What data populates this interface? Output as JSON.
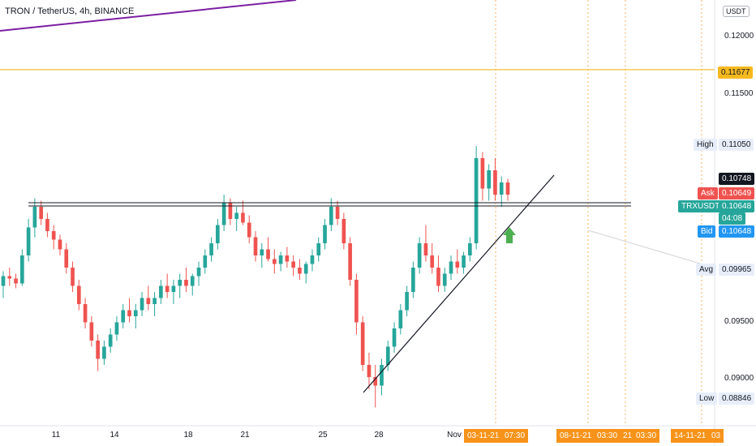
{
  "header": {
    "symbol_title": "TRON / TetherUS, 4h, BINANCE"
  },
  "price_axis": {
    "currency_label": "USDT",
    "ticks": [
      "0.12000",
      "0.11500",
      "0.11050",
      "0.09500",
      "0.09000"
    ]
  },
  "markers": {
    "resistance_value": "0.11677",
    "high_label": "High",
    "high_value": "0.11050",
    "last_value": "0.10748",
    "ask_label": "Ask",
    "ask_value": "0.10649",
    "symbol_label": "TRXUSDT",
    "symbol_value": "0.10648",
    "countdown": "04:08",
    "bid_label": "Bid",
    "bid_value": "0.10648",
    "avg_label": "Avg",
    "avg_value": "0.09965",
    "low_label": "Low",
    "low_value": "0.08846"
  },
  "time_axis": {
    "ticks": [
      "11",
      "14",
      "18",
      "21",
      "25",
      "28",
      "Nov"
    ],
    "highlighted": [
      "03-11-21",
      "07:30",
      "08-11-21",
      "03:30",
      "21",
      "03:30",
      "14-11-21",
      "03"
    ]
  },
  "colors": {
    "up": "#26a69a",
    "down": "#ef5350",
    "resistance_line": "#f5b920",
    "purple_line": "#7b1fa2",
    "date_pill": "#f7931a",
    "arrow": "#4caf50"
  },
  "chart_data": {
    "type": "candlestick",
    "symbol": "TRXUSDT",
    "interval": "4h",
    "ylim": [
      0.0875,
      0.1225
    ],
    "series": [
      {
        "values": [
          [
            0.099,
            0.1002,
            0.098,
            0.0998
          ],
          [
            0.0998,
            0.1005,
            0.099,
            0.0996
          ],
          [
            0.0996,
            0.1,
            0.0988,
            0.0992
          ],
          [
            0.0992,
            0.102,
            0.099,
            0.1015
          ],
          [
            0.1015,
            0.1045,
            0.101,
            0.1038
          ],
          [
            0.1038,
            0.1062,
            0.103,
            0.1055
          ],
          [
            0.1055,
            0.106,
            0.104,
            0.1045
          ],
          [
            0.1045,
            0.105,
            0.103,
            0.1035
          ],
          [
            0.1035,
            0.104,
            0.102,
            0.1028
          ],
          [
            0.1028,
            0.1032,
            0.1015,
            0.102
          ],
          [
            0.102,
            0.1025,
            0.1,
            0.1005
          ],
          [
            0.1005,
            0.101,
            0.0985,
            0.099
          ],
          [
            0.099,
            0.0995,
            0.097,
            0.0975
          ],
          [
            0.0975,
            0.098,
            0.0955,
            0.096
          ],
          [
            0.096,
            0.0965,
            0.094,
            0.0945
          ],
          [
            0.0945,
            0.095,
            0.092,
            0.093
          ],
          [
            0.093,
            0.0945,
            0.0925,
            0.094
          ],
          [
            0.094,
            0.0955,
            0.0935,
            0.095
          ],
          [
            0.095,
            0.0965,
            0.0945,
            0.096
          ],
          [
            0.096,
            0.0975,
            0.0955,
            0.097
          ],
          [
            0.097,
            0.098,
            0.096,
            0.0965
          ],
          [
            0.0965,
            0.0975,
            0.0955,
            0.097
          ],
          [
            0.097,
            0.0985,
            0.0965,
            0.098
          ],
          [
            0.098,
            0.099,
            0.097,
            0.0975
          ],
          [
            0.0975,
            0.0985,
            0.0965,
            0.098
          ],
          [
            0.098,
            0.0995,
            0.0975,
            0.099
          ],
          [
            0.099,
            0.1,
            0.098,
            0.0985
          ],
          [
            0.0985,
            0.0995,
            0.0975,
            0.099
          ],
          [
            0.099,
            0.1,
            0.098,
            0.0995
          ],
          [
            0.0995,
            0.1005,
            0.0985,
            0.099
          ],
          [
            0.099,
            0.1,
            0.0982,
            0.0998
          ],
          [
            0.0998,
            0.101,
            0.099,
            0.1005
          ],
          [
            0.1005,
            0.102,
            0.1,
            0.1015
          ],
          [
            0.1015,
            0.103,
            0.101,
            0.1025
          ],
          [
            0.1025,
            0.1045,
            0.102,
            0.104
          ],
          [
            0.104,
            0.1065,
            0.1035,
            0.1058
          ],
          [
            0.1058,
            0.1062,
            0.104,
            0.1045
          ],
          [
            0.1045,
            0.1055,
            0.1035,
            0.105
          ],
          [
            0.105,
            0.106,
            0.104,
            0.1042
          ],
          [
            0.1042,
            0.1048,
            0.1025,
            0.103
          ],
          [
            0.103,
            0.1035,
            0.101,
            0.1015
          ],
          [
            0.1015,
            0.1025,
            0.1005,
            0.102
          ],
          [
            0.102,
            0.103,
            0.101,
            0.1012
          ],
          [
            0.1012,
            0.102,
            0.1,
            0.1008
          ],
          [
            0.1008,
            0.1018,
            0.1002,
            0.1015
          ],
          [
            0.1015,
            0.1022,
            0.1005,
            0.101
          ],
          [
            0.101,
            0.1015,
            0.0998,
            0.1005
          ],
          [
            0.1005,
            0.1012,
            0.0995,
            0.1
          ],
          [
            0.1,
            0.101,
            0.0992,
            0.1008
          ],
          [
            0.1008,
            0.102,
            0.1002,
            0.1015
          ],
          [
            0.1015,
            0.103,
            0.101,
            0.1025
          ],
          [
            0.1025,
            0.1045,
            0.102,
            0.104
          ],
          [
            0.104,
            0.1062,
            0.1035,
            0.1055
          ],
          [
            0.1055,
            0.106,
            0.104,
            0.1045
          ],
          [
            0.1045,
            0.105,
            0.102,
            0.1025
          ],
          [
            0.1025,
            0.103,
            0.099,
            0.0995
          ],
          [
            0.0995,
            0.1,
            0.095,
            0.096
          ],
          [
            0.096,
            0.0965,
            0.092,
            0.0925
          ],
          [
            0.0925,
            0.0935,
            0.0905,
            0.0915
          ],
          [
            0.0915,
            0.0925,
            0.089,
            0.0908
          ],
          [
            0.0908,
            0.093,
            0.09,
            0.0925
          ],
          [
            0.0925,
            0.0945,
            0.092,
            0.094
          ],
          [
            0.094,
            0.096,
            0.0935,
            0.0955
          ],
          [
            0.0955,
            0.0975,
            0.095,
            0.097
          ],
          [
            0.097,
            0.099,
            0.0965,
            0.0985
          ],
          [
            0.0985,
            0.101,
            0.098,
            0.1005
          ],
          [
            0.1005,
            0.103,
            0.1,
            0.1025
          ],
          [
            0.1025,
            0.104,
            0.101,
            0.1015
          ],
          [
            0.1015,
            0.1025,
            0.1,
            0.1005
          ],
          [
            0.1005,
            0.1015,
            0.0985,
            0.099
          ],
          [
            0.099,
            0.1005,
            0.0985,
            0.1
          ],
          [
            0.1,
            0.1015,
            0.0995,
            0.101
          ],
          [
            0.101,
            0.102,
            0.1,
            0.1005
          ],
          [
            0.1005,
            0.1018,
            0.1,
            0.1015
          ],
          [
            0.1015,
            0.103,
            0.101,
            0.1025
          ],
          [
            0.1025,
            0.1105,
            0.102,
            0.1095
          ],
          [
            0.1095,
            0.11,
            0.106,
            0.107
          ],
          [
            0.107,
            0.109,
            0.106,
            0.1085
          ],
          [
            0.1085,
            0.1095,
            0.106,
            0.1065
          ],
          [
            0.1065,
            0.108,
            0.1055,
            0.1075
          ],
          [
            0.1075,
            0.1078,
            0.106,
            0.1065
          ]
        ]
      }
    ],
    "lines": {
      "horizontal_resistance": 0.11677,
      "channel_level": 0.1057
    }
  }
}
